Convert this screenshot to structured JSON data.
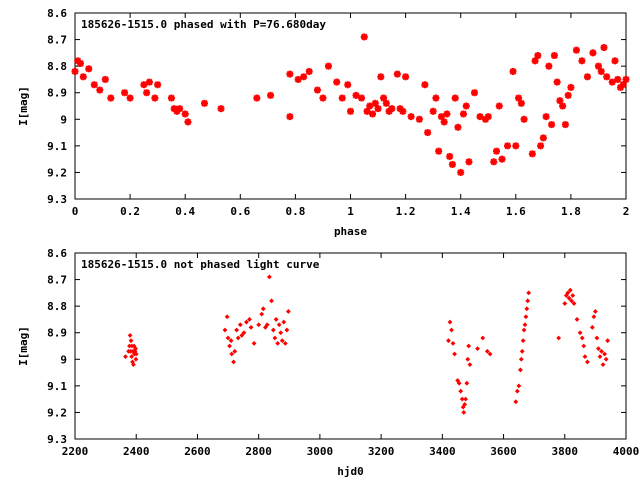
{
  "chart_data": [
    {
      "type": "scatter",
      "title": "185626-1515.0 phased with P=76.680day",
      "xlabel": "phase",
      "ylabel": "I[mag]",
      "xlim": [
        0,
        2
      ],
      "ylim": [
        8.6,
        9.3
      ],
      "y_inverted": true,
      "grid": false,
      "x_ticks": [
        "0",
        "0.2",
        "0.4",
        "0.6",
        "0.8",
        "1",
        "1.2",
        "1.4",
        "1.6",
        "1.8",
        "2"
      ],
      "y_ticks": [
        "8.6",
        "8.7",
        "8.8",
        "8.9",
        "9",
        "9.1",
        "9.2",
        "9.3"
      ],
      "marker_color": "#ff0000",
      "marker": "star",
      "series": [
        {
          "x": [
            0.0,
            0.01,
            0.02,
            0.03,
            0.05,
            0.07,
            0.09,
            0.11,
            0.13,
            0.18,
            0.2,
            0.25,
            0.26,
            0.27,
            0.29,
            0.3,
            0.35,
            0.36,
            0.37,
            0.38,
            0.4,
            0.41,
            0.47,
            0.53,
            0.66,
            0.71,
            0.78,
            0.78,
            0.81,
            0.83,
            0.85,
            0.88,
            0.9,
            0.92,
            0.95,
            0.97,
            0.99,
            1.0,
            1.02,
            1.04,
            1.05,
            1.06,
            1.07,
            1.08,
            1.09,
            1.1,
            1.11,
            1.12,
            1.13,
            1.14,
            1.15,
            1.17,
            1.18,
            1.19,
            1.2,
            1.22,
            1.25,
            1.27,
            1.28,
            1.3,
            1.31,
            1.32,
            1.33,
            1.34,
            1.35,
            1.36,
            1.37,
            1.38,
            1.39,
            1.4,
            1.41,
            1.42,
            1.43,
            1.45,
            1.47,
            1.49,
            1.5,
            1.52,
            1.53,
            1.54,
            1.55,
            1.57,
            1.59,
            1.6,
            1.61,
            1.62,
            1.63,
            1.66,
            1.67,
            1.68,
            1.69,
            1.7,
            1.71,
            1.72,
            1.73,
            1.74,
            1.75,
            1.76,
            1.77,
            1.78,
            1.79,
            1.8,
            1.82,
            1.84,
            1.86,
            1.88,
            1.9,
            1.91,
            1.92,
            1.93,
            1.95,
            1.96,
            1.97,
            1.98,
            1.99,
            2.0
          ],
          "y": [
            8.82,
            8.78,
            8.79,
            8.84,
            8.81,
            8.87,
            8.89,
            8.85,
            8.92,
            8.9,
            8.92,
            8.87,
            8.9,
            8.86,
            8.92,
            8.87,
            8.92,
            8.96,
            8.97,
            8.96,
            8.98,
            9.01,
            8.94,
            8.96,
            8.92,
            8.91,
            8.83,
            8.99,
            8.85,
            8.84,
            8.82,
            8.89,
            8.92,
            8.8,
            8.86,
            8.92,
            8.87,
            8.97,
            8.91,
            8.92,
            8.69,
            8.97,
            8.95,
            8.98,
            8.94,
            8.96,
            8.84,
            8.92,
            8.94,
            8.97,
            8.96,
            8.83,
            8.96,
            8.97,
            8.84,
            8.99,
            9.0,
            8.87,
            9.05,
            8.97,
            8.92,
            9.12,
            8.99,
            9.01,
            8.98,
            9.14,
            9.17,
            8.92,
            9.03,
            9.2,
            8.98,
            8.95,
            9.16,
            8.9,
            8.99,
            9.0,
            8.99,
            9.16,
            9.12,
            8.95,
            9.15,
            9.1,
            8.82,
            9.1,
            8.92,
            8.94,
            9.0,
            9.13,
            8.78,
            8.76,
            9.1,
            9.07,
            8.99,
            8.8,
            9.02,
            8.76,
            8.86,
            8.93,
            8.95,
            9.02,
            8.91,
            8.88,
            8.74,
            8.78,
            8.84,
            8.75,
            8.8,
            8.82,
            8.73,
            8.84,
            8.86,
            8.78,
            8.85,
            8.88,
            8.87,
            8.85
          ]
        }
      ]
    },
    {
      "type": "scatter",
      "title": "185626-1515.0 not phased light curve",
      "xlabel": "hjd0",
      "ylabel": "I[mag]",
      "xlim": [
        2200,
        4000
      ],
      "ylim": [
        8.6,
        9.3
      ],
      "y_inverted": true,
      "grid": false,
      "x_ticks": [
        "2200",
        "2400",
        "2600",
        "2800",
        "3000",
        "3200",
        "3400",
        "3600",
        "3800",
        "4000"
      ],
      "y_ticks": [
        "8.6",
        "8.7",
        "8.8",
        "8.9",
        "9",
        "9.1",
        "9.2",
        "9.3"
      ],
      "marker_color": "#ff0000",
      "marker": "diamond",
      "series": [
        {
          "x": [
            2365,
            2375,
            2378,
            2380,
            2382,
            2383,
            2385,
            2386,
            2388,
            2390,
            2391,
            2393,
            2394,
            2396,
            2398,
            2399,
            2400,
            2690,
            2697,
            2700,
            2705,
            2710,
            2712,
            2718,
            2722,
            2728,
            2733,
            2740,
            2745,
            2752,
            2760,
            2770,
            2775,
            2785,
            2800,
            2810,
            2815,
            2822,
            2828,
            2835,
            2842,
            2848,
            2853,
            2857,
            2862,
            2867,
            2872,
            2877,
            2882,
            2887,
            2892,
            2897,
            3420,
            3425,
            3430,
            3435,
            3440,
            3450,
            3455,
            3460,
            3465,
            3468,
            3470,
            3473,
            3476,
            3480,
            3483,
            3486,
            3490,
            3515,
            3532,
            3547,
            3556,
            3640,
            3645,
            3650,
            3655,
            3658,
            3661,
            3664,
            3667,
            3670,
            3673,
            3676,
            3679,
            3682,
            3780,
            3800,
            3805,
            3810,
            3814,
            3818,
            3822,
            3826,
            3830,
            3840,
            3850,
            3857,
            3862,
            3866,
            3874,
            3890,
            3895,
            3900,
            3905,
            3910,
            3915,
            3920,
            3925,
            3930,
            3935,
            3940
          ],
          "y": [
            8.99,
            8.97,
            8.95,
            8.91,
            8.97,
            8.93,
            8.99,
            8.95,
            9.01,
            8.97,
            9.02,
            8.95,
            8.98,
            8.97,
            8.96,
            9.0,
            8.98,
            8.89,
            8.84,
            8.92,
            8.95,
            8.93,
            8.98,
            9.01,
            8.97,
            8.89,
            8.92,
            8.87,
            8.91,
            8.9,
            8.86,
            8.85,
            8.88,
            8.94,
            8.87,
            8.83,
            8.81,
            8.88,
            8.87,
            8.69,
            8.78,
            8.89,
            8.92,
            8.85,
            8.94,
            8.87,
            8.9,
            8.93,
            8.86,
            8.94,
            8.89,
            8.82,
            8.93,
            8.86,
            8.89,
            8.94,
            8.98,
            9.08,
            9.09,
            9.12,
            9.15,
            9.18,
            9.2,
            9.17,
            9.15,
            9.09,
            9.0,
            8.95,
            9.02,
            8.96,
            8.92,
            8.97,
            8.98,
            9.16,
            9.12,
            9.1,
            9.04,
            9.0,
            8.97,
            8.93,
            8.89,
            8.87,
            8.84,
            8.81,
            8.78,
            8.75,
            8.92,
            8.79,
            8.76,
            8.75,
            8.77,
            8.74,
            8.78,
            8.76,
            8.79,
            8.85,
            8.9,
            8.92,
            8.95,
            8.99,
            9.01,
            8.88,
            8.84,
            8.82,
            8.92,
            8.96,
            8.99,
            8.97,
            9.02,
            8.98,
            9.0,
            8.93
          ]
        }
      ]
    }
  ]
}
